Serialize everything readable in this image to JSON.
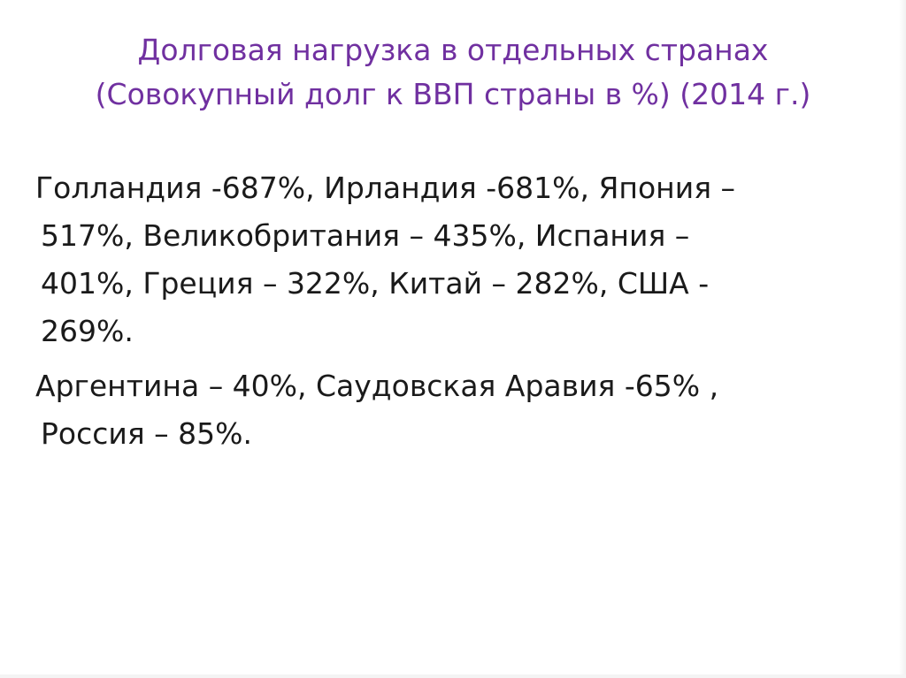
{
  "slide": {
    "title_lines": [
      "Долговая нагрузка в отдельных странах",
      "(Совокупный долг к ВВП страны в %) (2014 г.)"
    ],
    "paragraphs": [
      {
        "lines": [
          "Голландия -687%, Ирландия -681%, Япония –",
          "517%, Великобритания – 435%, Испания –",
          "401%, Греция – 322%, Китай – 282%, США -",
          "269%."
        ]
      },
      {
        "lines": [
          "Аргентина – 40%, Саудовская Аравия -65% ,",
          "Россия – 85%."
        ]
      }
    ]
  },
  "colors": {
    "title": "#7030a0",
    "body_text": "#1a1a1a",
    "background": "#ffffff"
  }
}
